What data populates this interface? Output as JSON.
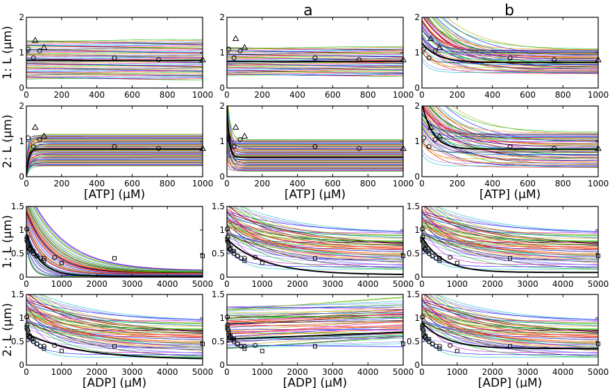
{
  "figure": {
    "column_headers": [
      "",
      "a",
      "b"
    ],
    "row_prefixes": [
      "1:",
      "2:",
      "1:",
      "2:"
    ]
  },
  "chart_data": [
    {
      "type": "line",
      "row": 0,
      "col": 0,
      "ylabel": "L (µm)",
      "xlabel": "",
      "xlim": [
        0,
        1000
      ],
      "ylim": [
        0,
        2
      ],
      "xticks": [
        0,
        200,
        400,
        600,
        800,
        1000
      ],
      "yticks": [
        0,
        1,
        2
      ],
      "family": {
        "kind": "flat",
        "center": 0.8,
        "spread": 0.55,
        "count": 55
      },
      "bold": {
        "kind": "flat",
        "y": 0.78
      },
      "markers": {
        "circles": [
          [
            10,
            1.1
          ],
          [
            40,
            0.85
          ],
          [
            75,
            1.05
          ],
          [
            500,
            0.85
          ],
          [
            750,
            0.8
          ]
        ],
        "triangles": [
          [
            50,
            1.35
          ],
          [
            100,
            1.15
          ],
          [
            1000,
            0.8
          ]
        ]
      }
    },
    {
      "type": "line",
      "row": 0,
      "col": 1,
      "ylabel": "",
      "xlabel": "",
      "xlim": [
        0,
        1000
      ],
      "ylim": [
        0,
        2
      ],
      "xticks": [
        0,
        200,
        400,
        600,
        800,
        1000
      ],
      "yticks": [
        0,
        1,
        2
      ],
      "family": {
        "kind": "flat",
        "center": 0.75,
        "spread": 0.4,
        "count": 55
      },
      "bold": {
        "kind": "flat",
        "y": 0.75
      },
      "markers": {
        "circles": [
          [
            10,
            1.1
          ],
          [
            40,
            0.85
          ],
          [
            75,
            1.05
          ],
          [
            500,
            0.85
          ],
          [
            750,
            0.8
          ]
        ],
        "triangles": [
          [
            50,
            1.4
          ],
          [
            100,
            1.15
          ],
          [
            1000,
            0.8
          ]
        ]
      }
    },
    {
      "type": "line",
      "row": 0,
      "col": 2,
      "ylabel": "",
      "xlabel": "",
      "xlim": [
        0,
        1000
      ],
      "ylim": [
        0,
        2
      ],
      "xticks": [
        0,
        200,
        400,
        600,
        800,
        1000
      ],
      "yticks": [
        0,
        1,
        2
      ],
      "family": {
        "kind": "atp_decay",
        "center": 0.75,
        "spread": 0.35,
        "count": 55
      },
      "bold": {
        "kind": "atp_decay",
        "base": 0.72,
        "amp": 0.55,
        "k": 90
      },
      "markers": {
        "circles": [
          [
            10,
            1.1
          ],
          [
            40,
            0.85
          ],
          [
            75,
            1.05
          ],
          [
            500,
            0.85
          ],
          [
            750,
            0.8
          ]
        ],
        "triangles": [
          [
            50,
            1.4
          ],
          [
            100,
            1.15
          ],
          [
            1000,
            0.8
          ]
        ]
      }
    },
    {
      "type": "line",
      "row": 1,
      "col": 0,
      "ylabel": "L (µm)",
      "xlabel": "[ATP] (µM)",
      "xlim": [
        0,
        1000
      ],
      "ylim": [
        0,
        2
      ],
      "xticks": [
        0,
        200,
        400,
        600,
        800,
        1000
      ],
      "yticks": [
        0,
        1,
        2
      ],
      "family": {
        "kind": "atp_rise",
        "center": 0.75,
        "spread": 0.45,
        "count": 55
      },
      "bold": {
        "kind": "atp_rise",
        "top": 0.78,
        "k": 12
      },
      "markers": {
        "circles": [
          [
            10,
            1.1
          ],
          [
            40,
            0.85
          ],
          [
            75,
            1.05
          ],
          [
            500,
            0.85
          ],
          [
            750,
            0.8
          ]
        ],
        "triangles": [
          [
            50,
            1.4
          ],
          [
            100,
            1.15
          ],
          [
            1000,
            0.8
          ]
        ]
      }
    },
    {
      "type": "line",
      "row": 1,
      "col": 1,
      "ylabel": "",
      "xlabel": "[ATP] (µM)",
      "xlim": [
        0,
        1000
      ],
      "ylim": [
        0,
        2
      ],
      "xticks": [
        0,
        200,
        400,
        600,
        800,
        1000
      ],
      "yticks": [
        0,
        1,
        2
      ],
      "family": {
        "kind": "atp_drop",
        "center": 0.6,
        "spread": 0.45,
        "count": 55
      },
      "bold": {
        "kind": "atp_decay",
        "base": 0.55,
        "amp": 1.5,
        "k": 12
      },
      "markers": {
        "circles": [
          [
            10,
            1.1
          ],
          [
            40,
            0.85
          ],
          [
            75,
            1.05
          ],
          [
            500,
            0.85
          ],
          [
            750,
            0.8
          ]
        ],
        "triangles": [
          [
            50,
            1.4
          ],
          [
            100,
            1.15
          ],
          [
            1000,
            0.8
          ]
        ]
      }
    },
    {
      "type": "line",
      "row": 1,
      "col": 2,
      "ylabel": "",
      "xlabel": "[ATP] (µM)",
      "xlim": [
        0,
        1000
      ],
      "ylim": [
        0,
        2
      ],
      "xticks": [
        0,
        200,
        400,
        600,
        800,
        1000
      ],
      "yticks": [
        0,
        1,
        2
      ],
      "family": {
        "kind": "atp_decay",
        "center": 0.75,
        "spread": 0.5,
        "count": 55
      },
      "bold": {
        "kind": "atp_decay",
        "base": 0.78,
        "amp": 1.3,
        "k": 60
      },
      "markers": {
        "circles": [
          [
            10,
            1.1
          ],
          [
            40,
            0.85
          ],
          [
            75,
            1.05
          ],
          [
            500,
            0.85
          ],
          [
            750,
            0.8
          ]
        ],
        "triangles": [
          [
            50,
            1.4
          ],
          [
            100,
            1.15
          ],
          [
            1000,
            0.8
          ]
        ]
      }
    },
    {
      "type": "line",
      "row": 2,
      "col": 0,
      "ylabel": "L (µm)",
      "xlabel": "",
      "xlim": [
        0,
        5000
      ],
      "ylim": [
        0,
        1.5
      ],
      "xticks": [
        0,
        1000,
        2000,
        3000,
        4000,
        5000
      ],
      "yticks": [
        0,
        0.5,
        1,
        1.5
      ],
      "family": {
        "kind": "adp_decay",
        "count": 55
      },
      "bold": {
        "kind": "adp_decay",
        "a": 0.9,
        "c": 0.02,
        "k": 400
      },
      "markers": {
        "circles": [
          [
            10,
            1.02
          ],
          [
            20,
            0.85
          ],
          [
            30,
            0.75
          ],
          [
            50,
            0.65
          ],
          [
            80,
            0.6
          ],
          [
            100,
            0.58
          ],
          [
            150,
            0.55
          ],
          [
            200,
            0.5
          ],
          [
            300,
            0.45
          ],
          [
            400,
            0.4
          ],
          [
            500,
            0.4
          ],
          [
            800,
            0.42
          ]
        ],
        "squares": [
          [
            10,
            0.8
          ],
          [
            50,
            0.7
          ],
          [
            100,
            0.62
          ],
          [
            200,
            0.55
          ],
          [
            300,
            0.45
          ],
          [
            500,
            0.35
          ],
          [
            1000,
            0.3
          ],
          [
            2500,
            0.4
          ],
          [
            5000,
            0.45
          ]
        ]
      }
    },
    {
      "type": "line",
      "row": 2,
      "col": 1,
      "ylabel": "",
      "xlabel": "",
      "xlim": [
        0,
        5000
      ],
      "ylim": [
        0,
        1.5
      ],
      "xticks": [
        0,
        1000,
        2000,
        3000,
        4000,
        5000
      ],
      "yticks": [
        0,
        0.5,
        1,
        1.5
      ],
      "family": {
        "kind": "adp_slow",
        "count": 55
      },
      "bold": {
        "kind": "adp_decay",
        "a": 0.75,
        "c": 0.05,
        "k": 1100
      },
      "markers": {
        "circles": [
          [
            10,
            1.02
          ],
          [
            20,
            0.85
          ],
          [
            30,
            0.75
          ],
          [
            50,
            0.65
          ],
          [
            80,
            0.6
          ],
          [
            100,
            0.58
          ],
          [
            150,
            0.55
          ],
          [
            200,
            0.5
          ],
          [
            300,
            0.45
          ],
          [
            400,
            0.4
          ],
          [
            500,
            0.4
          ],
          [
            800,
            0.42
          ]
        ],
        "squares": [
          [
            10,
            0.8
          ],
          [
            50,
            0.7
          ],
          [
            100,
            0.62
          ],
          [
            200,
            0.55
          ],
          [
            300,
            0.45
          ],
          [
            500,
            0.35
          ],
          [
            1000,
            0.3
          ],
          [
            2500,
            0.4
          ],
          [
            5000,
            0.45
          ]
        ]
      }
    },
    {
      "type": "line",
      "row": 2,
      "col": 2,
      "ylabel": "",
      "xlabel": "",
      "xlim": [
        0,
        5000
      ],
      "ylim": [
        0,
        1.5
      ],
      "xticks": [
        0,
        1000,
        2000,
        3000,
        4000,
        5000
      ],
      "yticks": [
        0,
        0.5,
        1,
        1.5
      ],
      "family": {
        "kind": "adp_slow",
        "count": 55
      },
      "bold": {
        "kind": "adp_decay",
        "a": 0.75,
        "c": 0.1,
        "k": 600
      },
      "markers": {
        "circles": [
          [
            10,
            1.02
          ],
          [
            20,
            0.85
          ],
          [
            30,
            0.75
          ],
          [
            50,
            0.65
          ],
          [
            80,
            0.6
          ],
          [
            100,
            0.58
          ],
          [
            150,
            0.55
          ],
          [
            200,
            0.5
          ],
          [
            300,
            0.45
          ],
          [
            400,
            0.4
          ],
          [
            500,
            0.4
          ],
          [
            800,
            0.42
          ]
        ],
        "squares": [
          [
            10,
            0.8
          ],
          [
            50,
            0.7
          ],
          [
            100,
            0.62
          ],
          [
            200,
            0.55
          ],
          [
            300,
            0.45
          ],
          [
            500,
            0.35
          ],
          [
            1000,
            0.3
          ],
          [
            2500,
            0.4
          ],
          [
            5000,
            0.45
          ]
        ]
      }
    },
    {
      "type": "line",
      "row": 3,
      "col": 0,
      "ylabel": "L (µm)",
      "xlabel": "[ADP] (µM)",
      "xlim": [
        0,
        5000
      ],
      "ylim": [
        0,
        1.5
      ],
      "xticks": [
        0,
        1000,
        2000,
        3000,
        4000,
        5000
      ],
      "yticks": [
        0,
        0.5,
        1,
        1.5
      ],
      "family": {
        "kind": "adp_slow",
        "count": 55
      },
      "bold": {
        "kind": "adp_decay",
        "a": 0.55,
        "c": 0.12,
        "k": 1500
      },
      "markers": {
        "circles": [
          [
            10,
            1.02
          ],
          [
            20,
            0.85
          ],
          [
            30,
            0.75
          ],
          [
            50,
            0.65
          ],
          [
            80,
            0.6
          ],
          [
            100,
            0.58
          ],
          [
            150,
            0.55
          ],
          [
            200,
            0.5
          ],
          [
            300,
            0.45
          ],
          [
            400,
            0.4
          ],
          [
            500,
            0.4
          ],
          [
            800,
            0.42
          ]
        ],
        "squares": [
          [
            10,
            0.8
          ],
          [
            50,
            0.7
          ],
          [
            100,
            0.62
          ],
          [
            200,
            0.55
          ],
          [
            300,
            0.45
          ],
          [
            500,
            0.35
          ],
          [
            1000,
            0.3
          ],
          [
            2500,
            0.4
          ],
          [
            5000,
            0.45
          ]
        ]
      }
    },
    {
      "type": "line",
      "row": 3,
      "col": 1,
      "ylabel": "",
      "xlabel": "[ADP] (µM)",
      "xlim": [
        0,
        5000
      ],
      "ylim": [
        0,
        1.5
      ],
      "xticks": [
        0,
        1000,
        2000,
        3000,
        4000,
        5000
      ],
      "yticks": [
        0,
        0.5,
        1,
        1.5
      ],
      "family": {
        "kind": "adp_rise",
        "count": 55
      },
      "bold": {
        "kind": "adp_lin",
        "y0": 0.55,
        "y1": 0.7
      },
      "markers": {
        "circles": [
          [
            10,
            1.02
          ],
          [
            20,
            0.85
          ],
          [
            30,
            0.75
          ],
          [
            50,
            0.65
          ],
          [
            80,
            0.6
          ],
          [
            100,
            0.58
          ],
          [
            150,
            0.55
          ],
          [
            200,
            0.5
          ],
          [
            300,
            0.45
          ],
          [
            400,
            0.4
          ],
          [
            500,
            0.4
          ],
          [
            800,
            0.42
          ]
        ],
        "squares": [
          [
            10,
            0.8
          ],
          [
            50,
            0.7
          ],
          [
            100,
            0.62
          ],
          [
            200,
            0.55
          ],
          [
            300,
            0.45
          ],
          [
            500,
            0.35
          ],
          [
            1000,
            0.3
          ],
          [
            2500,
            0.4
          ],
          [
            5000,
            0.45
          ]
        ]
      }
    },
    {
      "type": "line",
      "row": 3,
      "col": 2,
      "ylabel": "",
      "xlabel": "[ADP] (µM)",
      "xlim": [
        0,
        5000
      ],
      "ylim": [
        0,
        1.5
      ],
      "xticks": [
        0,
        1000,
        2000,
        3000,
        4000,
        5000
      ],
      "yticks": [
        0,
        0.5,
        1,
        1.5
      ],
      "family": {
        "kind": "adp_slow",
        "count": 55
      },
      "bold": {
        "kind": "adp_decay",
        "a": 0.55,
        "c": 0.35,
        "k": 700
      },
      "markers": {
        "circles": [
          [
            10,
            1.02
          ],
          [
            20,
            0.85
          ],
          [
            30,
            0.75
          ],
          [
            50,
            0.65
          ],
          [
            80,
            0.6
          ],
          [
            100,
            0.58
          ],
          [
            150,
            0.55
          ],
          [
            200,
            0.5
          ],
          [
            300,
            0.45
          ],
          [
            400,
            0.4
          ],
          [
            500,
            0.4
          ],
          [
            800,
            0.42
          ]
        ],
        "squares": [
          [
            10,
            0.8
          ],
          [
            50,
            0.7
          ],
          [
            100,
            0.62
          ],
          [
            200,
            0.55
          ],
          [
            300,
            0.45
          ],
          [
            500,
            0.35
          ],
          [
            1000,
            0.3
          ],
          [
            2500,
            0.4
          ],
          [
            5000,
            0.45
          ]
        ]
      }
    }
  ],
  "palette": [
    "#00c000",
    "#ff0000",
    "#0000ff",
    "#00c0c0",
    "#c000c0",
    "#c0a000",
    "#000000",
    "#8080ff",
    "#ff8000"
  ]
}
